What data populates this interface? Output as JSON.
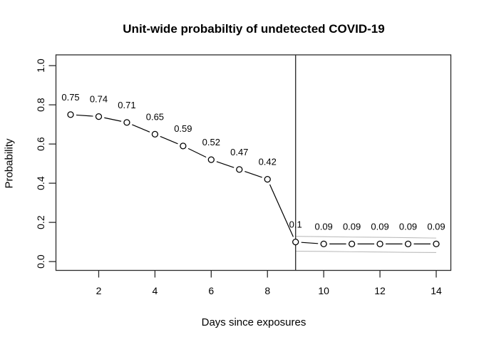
{
  "chart_data": {
    "type": "line",
    "title": "Unit-wide probabiltiy of undetected COVID-19",
    "xlabel": "Days since exposures",
    "ylabel": "Probability",
    "x": [
      1,
      2,
      3,
      4,
      5,
      6,
      7,
      8,
      9,
      10,
      11,
      12,
      13,
      14
    ],
    "values": [
      0.75,
      0.74,
      0.71,
      0.65,
      0.59,
      0.52,
      0.47,
      0.42,
      0.1,
      0.09,
      0.09,
      0.09,
      0.09,
      0.09
    ],
    "point_labels": [
      "0.75",
      "0.74",
      "0.71",
      "0.65",
      "0.59",
      "0.52",
      "0.47",
      "0.42",
      "0.1",
      "0.09",
      "0.09",
      "0.09",
      "0.09",
      "0.09"
    ],
    "marker": "open-circle",
    "line_style": "segments-between-points",
    "grid": false,
    "legend": null,
    "xlim": [
      0.48,
      14.52
    ],
    "ylim": [
      -0.045,
      1.055
    ],
    "xticks": {
      "values": [
        2,
        4,
        6,
        8,
        10,
        12,
        14
      ],
      "labels": [
        "2",
        "4",
        "6",
        "8",
        "10",
        "12",
        "14"
      ]
    },
    "yticks": {
      "values": [
        0.0,
        0.2,
        0.4,
        0.6,
        0.8,
        1.0
      ],
      "labels": [
        "0.0",
        "0.2",
        "0.4",
        "0.6",
        "0.8",
        "1.0"
      ]
    },
    "vline_x": 9,
    "ci_band": {
      "x": [
        9,
        10,
        11,
        12,
        13,
        14
      ],
      "upper": [
        0.129,
        0.127,
        0.125,
        0.124,
        0.122,
        0.12
      ],
      "lower": [
        0.053,
        0.052,
        0.05,
        0.049,
        0.047,
        0.046
      ]
    },
    "colors": {
      "series": "#000000",
      "marker_fill": "#ffffff",
      "ci_line": "#bdbdbd",
      "vline": "#333333",
      "axis": "#2b2b2b",
      "text": "#000000",
      "background": "#ffffff"
    }
  }
}
